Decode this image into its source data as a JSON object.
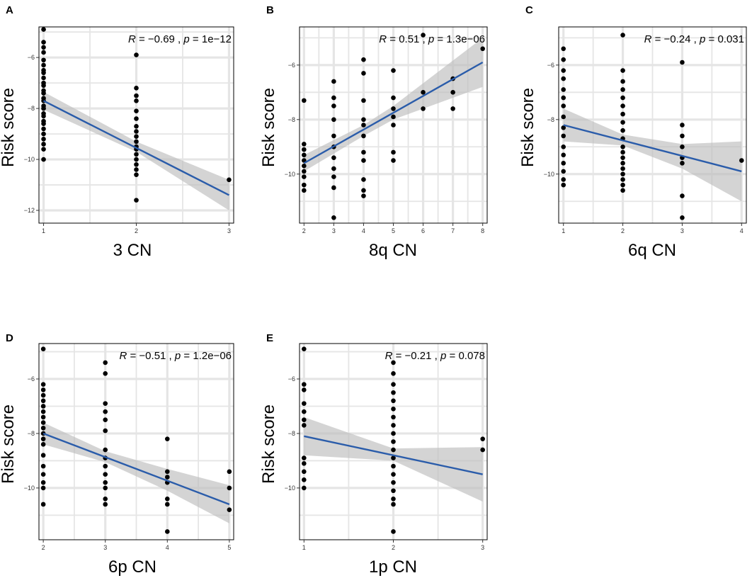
{
  "figure": {
    "panels_count": 5,
    "colors": {
      "background": "#ffffff",
      "grid": "#e5e5e5",
      "points": "#000000",
      "line": "#2a5caa",
      "band": "#bdbdbd",
      "border": "#000000"
    }
  },
  "chart_data": [
    {
      "panel": "A",
      "type": "scatter",
      "xlabel": "3 CN",
      "ylabel": "Risk score",
      "xlim": [
        0.95,
        3.05
      ],
      "ylim": [
        -12.5,
        -4.8
      ],
      "xticks": [
        1,
        2,
        3
      ],
      "yticks": [
        -6,
        -8,
        -10,
        -12
      ],
      "stats": {
        "r_value": "−0.69",
        "p_value": "1e−12"
      },
      "points": [
        [
          1,
          -4.9
        ],
        [
          1,
          -5.4
        ],
        [
          1,
          -5.6
        ],
        [
          1,
          -5.8
        ],
        [
          1,
          -6.1
        ],
        [
          1,
          -6.3
        ],
        [
          1,
          -6.5
        ],
        [
          1,
          -6.6
        ],
        [
          1,
          -6.8
        ],
        [
          1,
          -7.0
        ],
        [
          1,
          -7.1
        ],
        [
          1,
          -7.3
        ],
        [
          1,
          -7.4
        ],
        [
          1,
          -7.6
        ],
        [
          1,
          -7.7
        ],
        [
          1,
          -7.9
        ],
        [
          1,
          -8.0
        ],
        [
          1,
          -8.2
        ],
        [
          1,
          -8.3
        ],
        [
          1,
          -8.5
        ],
        [
          1,
          -8.6
        ],
        [
          1,
          -8.8
        ],
        [
          1,
          -9.0
        ],
        [
          1,
          -9.2
        ],
        [
          1,
          -9.4
        ],
        [
          1,
          -9.6
        ],
        [
          1,
          -10.0
        ],
        [
          2,
          -5.9
        ],
        [
          2,
          -7.2
        ],
        [
          2,
          -7.5
        ],
        [
          2,
          -7.7
        ],
        [
          2,
          -8.1
        ],
        [
          2,
          -8.4
        ],
        [
          2,
          -8.7
        ],
        [
          2,
          -8.9
        ],
        [
          2,
          -9.1
        ],
        [
          2,
          -9.3
        ],
        [
          2,
          -9.5
        ],
        [
          2,
          -9.6
        ],
        [
          2,
          -9.8
        ],
        [
          2,
          -10.0
        ],
        [
          2,
          -10.2
        ],
        [
          2,
          -10.4
        ],
        [
          2,
          -10.6
        ],
        [
          2,
          -11.6
        ],
        [
          3,
          -10.8
        ]
      ],
      "fit": {
        "x": [
          1,
          3
        ],
        "y": [
          -7.7,
          -11.4
        ]
      },
      "band": {
        "x": [
          1,
          2,
          3
        ],
        "upper": [
          -7.35,
          -9.3,
          -10.8
        ],
        "lower": [
          -8.05,
          -9.7,
          -12.0
        ]
      }
    },
    {
      "panel": "B",
      "type": "scatter",
      "xlabel": "8q CN",
      "ylabel": "Risk score",
      "xlim": [
        1.85,
        8.15
      ],
      "ylim": [
        -11.8,
        -4.6
      ],
      "xticks": [
        2,
        3,
        4,
        5,
        6,
        7,
        8
      ],
      "yticks": [
        -6,
        -8,
        -10
      ],
      "stats": {
        "r_value": "0.51",
        "p_value": "1.3e−06"
      },
      "points": [
        [
          2,
          -7.3
        ],
        [
          2,
          -8.9
        ],
        [
          2,
          -9.1
        ],
        [
          2,
          -9.3
        ],
        [
          2,
          -9.5
        ],
        [
          2,
          -9.7
        ],
        [
          2,
          -9.9
        ],
        [
          2,
          -10.1
        ],
        [
          2,
          -10.4
        ],
        [
          2,
          -10.6
        ],
        [
          3,
          -6.6
        ],
        [
          3,
          -7.2
        ],
        [
          3,
          -7.5
        ],
        [
          3,
          -8.0
        ],
        [
          3,
          -8.6
        ],
        [
          3,
          -9.0
        ],
        [
          3,
          -9.4
        ],
        [
          3,
          -9.8
        ],
        [
          3,
          -10.1
        ],
        [
          3,
          -10.5
        ],
        [
          3,
          -11.6
        ],
        [
          4,
          -5.8
        ],
        [
          4,
          -6.3
        ],
        [
          4,
          -7.3
        ],
        [
          4,
          -8.0
        ],
        [
          4,
          -8.2
        ],
        [
          4,
          -8.6
        ],
        [
          4,
          -9.2
        ],
        [
          4,
          -9.5
        ],
        [
          4,
          -10.2
        ],
        [
          4,
          -10.6
        ],
        [
          4,
          -10.8
        ],
        [
          5,
          -6.2
        ],
        [
          5,
          -7.2
        ],
        [
          5,
          -7.6
        ],
        [
          5,
          -7.9
        ],
        [
          5,
          -8.2
        ],
        [
          5,
          -9.2
        ],
        [
          5,
          -9.5
        ],
        [
          6,
          -4.9
        ],
        [
          6,
          -7.0
        ],
        [
          6,
          -7.6
        ],
        [
          7,
          -6.5
        ],
        [
          7,
          -7.0
        ],
        [
          7,
          -7.6
        ],
        [
          8,
          -5.4
        ]
      ],
      "fit": {
        "x": [
          2,
          8
        ],
        "y": [
          -9.6,
          -5.9
        ]
      },
      "band": {
        "x": [
          2,
          4,
          5,
          8
        ],
        "upper": [
          -9.3,
          -8.2,
          -7.5,
          -5.0
        ],
        "lower": [
          -9.9,
          -8.6,
          -8.0,
          -6.8
        ]
      }
    },
    {
      "panel": "C",
      "type": "scatter",
      "xlabel": "6q CN",
      "ylabel": "Risk score",
      "xlim": [
        0.92,
        4.08
      ],
      "ylim": [
        -11.8,
        -4.6
      ],
      "xticks": [
        1,
        2,
        3,
        4
      ],
      "yticks": [
        -6,
        -8,
        -10
      ],
      "stats": {
        "r_value": "−0.24",
        "p_value": "0.031"
      },
      "points": [
        [
          1,
          -5.4
        ],
        [
          1,
          -5.8
        ],
        [
          1,
          -6.2
        ],
        [
          1,
          -6.5
        ],
        [
          1,
          -6.9
        ],
        [
          1,
          -7.2
        ],
        [
          1,
          -7.5
        ],
        [
          1,
          -7.9
        ],
        [
          1,
          -8.3
        ],
        [
          1,
          -8.6
        ],
        [
          1,
          -9.0
        ],
        [
          1,
          -9.3
        ],
        [
          1,
          -9.6
        ],
        [
          1,
          -9.9
        ],
        [
          1,
          -10.2
        ],
        [
          1,
          -10.4
        ],
        [
          2,
          -4.9
        ],
        [
          2,
          -6.2
        ],
        [
          2,
          -6.6
        ],
        [
          2,
          -6.9
        ],
        [
          2,
          -7.2
        ],
        [
          2,
          -7.5
        ],
        [
          2,
          -7.8
        ],
        [
          2,
          -8.1
        ],
        [
          2,
          -8.4
        ],
        [
          2,
          -8.7
        ],
        [
          2,
          -9.0
        ],
        [
          2,
          -9.2
        ],
        [
          2,
          -9.4
        ],
        [
          2,
          -9.6
        ],
        [
          2,
          -9.8
        ],
        [
          2,
          -10.0
        ],
        [
          2,
          -10.2
        ],
        [
          2,
          -10.4
        ],
        [
          2,
          -10.6
        ],
        [
          3,
          -5.9
        ],
        [
          3,
          -8.2
        ],
        [
          3,
          -8.6
        ],
        [
          3,
          -9.0
        ],
        [
          3,
          -9.4
        ],
        [
          3,
          -9.6
        ],
        [
          3,
          -10.8
        ],
        [
          3,
          -11.6
        ],
        [
          4,
          -9.5
        ]
      ],
      "fit": {
        "x": [
          1,
          4
        ],
        "y": [
          -8.2,
          -9.9
        ]
      },
      "band": {
        "x": [
          1,
          2,
          3,
          4
        ],
        "upper": [
          -7.6,
          -8.55,
          -8.9,
          -8.8
        ],
        "lower": [
          -8.8,
          -8.95,
          -9.8,
          -11.0
        ]
      }
    },
    {
      "panel": "D",
      "type": "scatter",
      "xlabel": "6p CN",
      "ylabel": "Risk score",
      "xlim": [
        1.93,
        5.07
      ],
      "ylim": [
        -11.9,
        -4.7
      ],
      "xticks": [
        2,
        3,
        4,
        5
      ],
      "yticks": [
        -6,
        -8,
        -10
      ],
      "stats": {
        "r_value": "−0.51",
        "p_value": "1.2e−06"
      },
      "points": [
        [
          2,
          -4.9
        ],
        [
          2,
          -6.2
        ],
        [
          2,
          -6.4
        ],
        [
          2,
          -6.6
        ],
        [
          2,
          -6.8
        ],
        [
          2,
          -7.0
        ],
        [
          2,
          -7.2
        ],
        [
          2,
          -7.4
        ],
        [
          2,
          -7.6
        ],
        [
          2,
          -7.8
        ],
        [
          2,
          -8.0
        ],
        [
          2,
          -8.2
        ],
        [
          2,
          -8.4
        ],
        [
          2,
          -8.8
        ],
        [
          2,
          -9.2
        ],
        [
          2,
          -9.5
        ],
        [
          2,
          -9.8
        ],
        [
          2,
          -10.0
        ],
        [
          2,
          -10.6
        ],
        [
          3,
          -5.4
        ],
        [
          3,
          -5.8
        ],
        [
          3,
          -6.9
        ],
        [
          3,
          -7.2
        ],
        [
          3,
          -7.5
        ],
        [
          3,
          -7.9
        ],
        [
          3,
          -8.6
        ],
        [
          3,
          -8.9
        ],
        [
          3,
          -9.2
        ],
        [
          3,
          -9.5
        ],
        [
          3,
          -9.8
        ],
        [
          3,
          -10.0
        ],
        [
          3,
          -10.4
        ],
        [
          3,
          -10.6
        ],
        [
          4,
          -8.2
        ],
        [
          4,
          -9.4
        ],
        [
          4,
          -9.6
        ],
        [
          4,
          -9.8
        ],
        [
          4,
          -10.4
        ],
        [
          4,
          -10.6
        ],
        [
          4,
          -11.6
        ],
        [
          5,
          -9.4
        ],
        [
          5,
          -10.0
        ],
        [
          5,
          -10.8
        ]
      ],
      "fit": {
        "x": [
          2,
          5
        ],
        "y": [
          -8.0,
          -10.6
        ]
      },
      "band": {
        "x": [
          2,
          3,
          4,
          5
        ],
        "upper": [
          -7.6,
          -8.65,
          -9.3,
          -9.9
        ],
        "lower": [
          -8.4,
          -9.05,
          -10.1,
          -11.3
        ]
      }
    },
    {
      "panel": "E",
      "type": "scatter",
      "xlabel": "1p CN",
      "ylabel": "Risk score",
      "xlim": [
        0.95,
        3.05
      ],
      "ylim": [
        -11.9,
        -4.7
      ],
      "xticks": [
        1,
        2,
        3
      ],
      "yticks": [
        -6,
        -8,
        -10
      ],
      "stats": {
        "r_value": "−0.21",
        "p_value": "0.078"
      },
      "points": [
        [
          1,
          -4.9
        ],
        [
          1,
          -6.2
        ],
        [
          1,
          -6.4
        ],
        [
          1,
          -6.9
        ],
        [
          1,
          -7.2
        ],
        [
          1,
          -7.5
        ],
        [
          1,
          -7.7
        ],
        [
          1,
          -8.9
        ],
        [
          1,
          -9.1
        ],
        [
          1,
          -9.4
        ],
        [
          1,
          -9.7
        ],
        [
          1,
          -10.0
        ],
        [
          2,
          -5.4
        ],
        [
          2,
          -5.8
        ],
        [
          2,
          -6.2
        ],
        [
          2,
          -6.5
        ],
        [
          2,
          -6.8
        ],
        [
          2,
          -7.1
        ],
        [
          2,
          -7.4
        ],
        [
          2,
          -7.7
        ],
        [
          2,
          -8.0
        ],
        [
          2,
          -8.3
        ],
        [
          2,
          -8.6
        ],
        [
          2,
          -8.9
        ],
        [
          2,
          -9.2
        ],
        [
          2,
          -9.5
        ],
        [
          2,
          -9.8
        ],
        [
          2,
          -10.1
        ],
        [
          2,
          -10.4
        ],
        [
          2,
          -10.6
        ],
        [
          2,
          -11.6
        ],
        [
          3,
          -8.2
        ],
        [
          3,
          -8.6
        ]
      ],
      "fit": {
        "x": [
          1,
          3
        ],
        "y": [
          -8.1,
          -9.5
        ]
      },
      "band": {
        "x": [
          1,
          2,
          3
        ],
        "upper": [
          -7.4,
          -8.55,
          -8.5
        ],
        "lower": [
          -8.8,
          -9.0,
          -10.5
        ]
      }
    }
  ]
}
